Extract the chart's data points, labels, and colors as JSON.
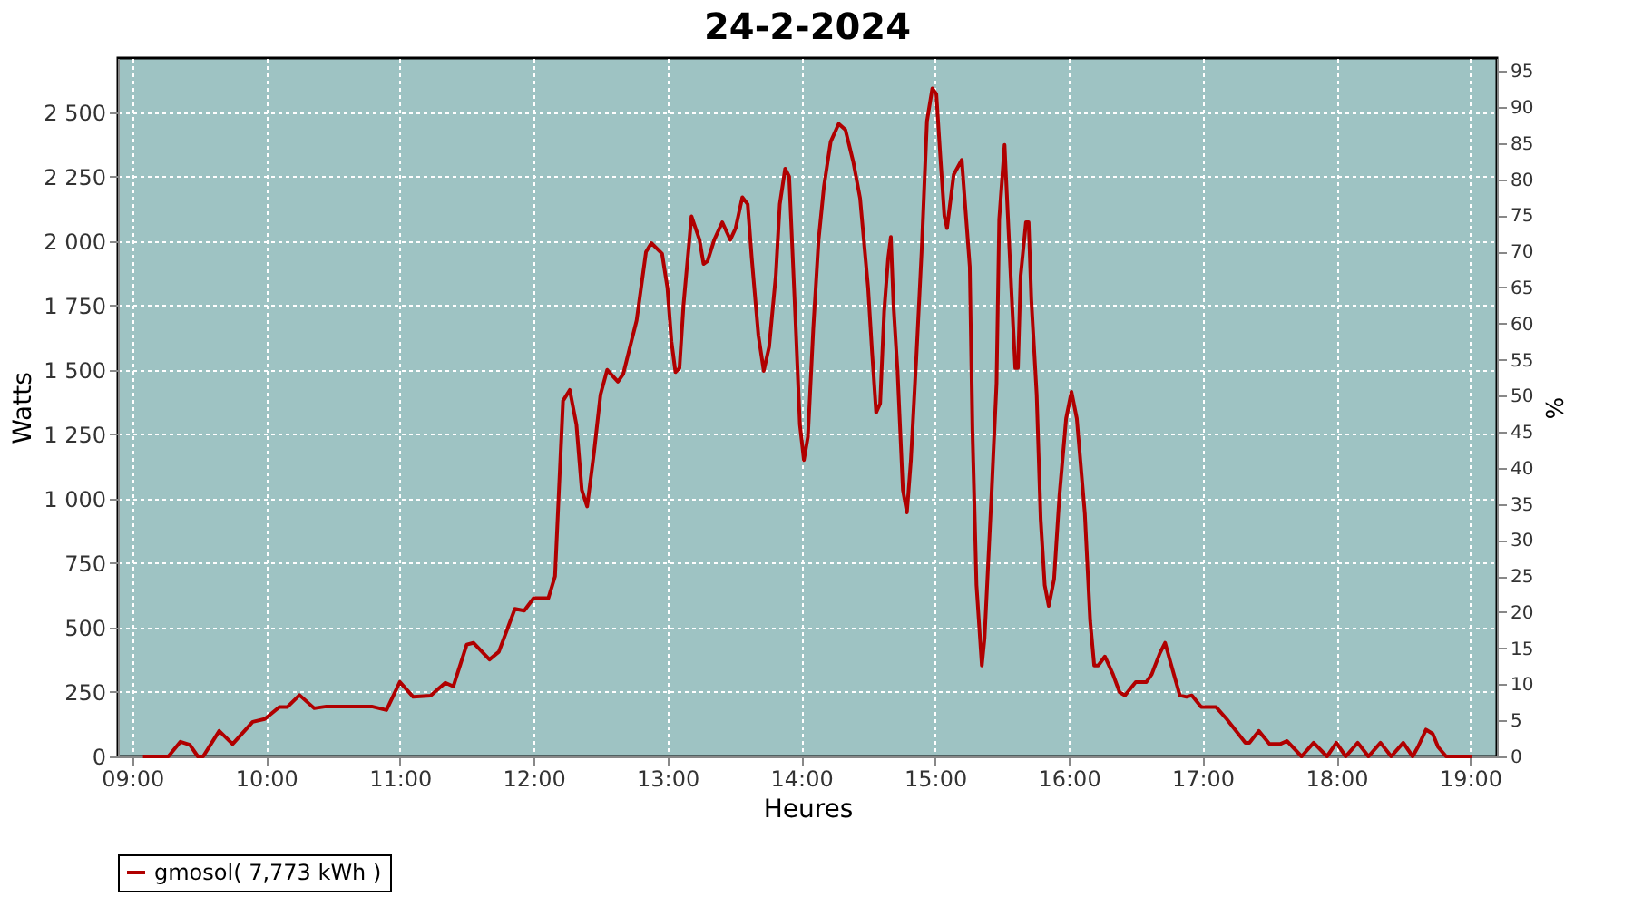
{
  "chart_data": {
    "type": "line",
    "title": "24-2-2024",
    "xlabel": "Heures",
    "ylabel": "Watts",
    "y2label": "%",
    "xlim": [
      8.893,
      19.2
    ],
    "ylim": [
      0,
      2710
    ],
    "y2lim": [
      0,
      96.8
    ],
    "xticks": [
      {
        "value": 9,
        "label": "09:00"
      },
      {
        "value": 10,
        "label": "10:00"
      },
      {
        "value": 11,
        "label": "11:00"
      },
      {
        "value": 12,
        "label": "12:00"
      },
      {
        "value": 13,
        "label": "13:00"
      },
      {
        "value": 14,
        "label": "14:00"
      },
      {
        "value": 15,
        "label": "15:00"
      },
      {
        "value": 16,
        "label": "16:00"
      },
      {
        "value": 17,
        "label": "17:00"
      },
      {
        "value": 18,
        "label": "18:00"
      },
      {
        "value": 19,
        "label": "19:00"
      }
    ],
    "yticks": [
      0,
      250,
      500,
      750,
      {
        "value": 1000,
        "label": "1 000"
      },
      {
        "value": 1250,
        "label": "1 250"
      },
      {
        "value": 1500,
        "label": "1 500"
      },
      {
        "value": 1750,
        "label": "1 750"
      },
      {
        "value": 2000,
        "label": "2 000"
      },
      {
        "value": 2250,
        "label": "2 250"
      },
      {
        "value": 2500,
        "label": "2 500"
      }
    ],
    "y2ticks": [
      0,
      5,
      10,
      15,
      20,
      25,
      30,
      35,
      40,
      45,
      50,
      55,
      60,
      65,
      70,
      75,
      80,
      85,
      90,
      95
    ],
    "grid": true,
    "legend": "bottom",
    "marker": "none",
    "line_style": "solid",
    "series": [
      {
        "name": "gmosol( 7,773 kWh )",
        "color": "#b00000",
        "x": [
          9.08,
          9.27,
          9.36,
          9.43,
          9.49,
          9.53,
          9.65,
          9.75,
          9.9,
          9.99,
          10.1,
          10.16,
          10.25,
          10.36,
          10.45,
          10.79,
          10.9,
          11.0,
          11.1,
          11.23,
          11.34,
          11.4,
          11.5,
          11.55,
          11.67,
          11.74,
          11.86,
          11.93,
          12.0,
          12.11,
          12.16,
          12.22,
          12.27,
          12.32,
          12.36,
          12.4,
          12.45,
          12.5,
          12.55,
          12.63,
          12.67,
          12.77,
          12.84,
          12.88,
          12.96,
          13.0,
          13.03,
          13.06,
          13.09,
          13.12,
          13.18,
          13.24,
          13.27,
          13.3,
          13.35,
          13.41,
          13.47,
          13.51,
          13.56,
          13.6,
          13.63,
          13.68,
          13.72,
          13.76,
          13.81,
          13.84,
          13.88,
          13.91,
          13.95,
          13.99,
          14.02,
          14.05,
          14.09,
          14.13,
          14.17,
          14.22,
          14.28,
          14.33,
          14.39,
          14.44,
          14.5,
          14.53,
          14.56,
          14.59,
          14.62,
          14.65,
          14.67,
          14.69,
          14.72,
          14.76,
          14.79,
          14.82,
          14.86,
          14.9,
          14.94,
          14.98,
          15.01,
          15.04,
          15.07,
          15.09,
          15.14,
          15.2,
          15.26,
          15.28,
          15.31,
          15.35,
          15.37,
          15.42,
          15.46,
          15.48,
          15.52,
          15.53,
          15.57,
          15.6,
          15.62,
          15.64,
          15.68,
          15.7,
          15.72,
          15.76,
          15.79,
          15.82,
          15.85,
          15.89,
          15.93,
          15.98,
          16.02,
          16.06,
          16.12,
          16.16,
          16.19,
          16.22,
          16.27,
          16.33,
          16.38,
          16.42,
          16.5,
          16.58,
          16.62,
          16.68,
          16.72,
          16.76,
          16.83,
          16.88,
          16.92,
          16.99,
          17.1,
          17.18,
          17.32,
          17.35,
          17.42,
          17.5,
          17.58,
          17.63,
          17.74,
          17.83,
          17.93,
          18.0,
          18.07,
          18.16,
          18.24,
          18.33,
          18.41,
          18.5,
          18.57,
          18.61,
          18.67,
          18.72,
          18.76,
          18.82,
          19.01
        ],
        "values": [
          0,
          0,
          57,
          45,
          0,
          0,
          99,
          48,
          134,
          145,
          192,
          192,
          238,
          187,
          194,
          194,
          180,
          289,
          231,
          236,
          286,
          272,
          434,
          441,
          376,
          406,
          573,
          566,
          614,
          614,
          699,
          1380,
          1422,
          1288,
          1034,
          970,
          1173,
          1404,
          1500,
          1454,
          1484,
          1692,
          1958,
          1992,
          1951,
          1819,
          1611,
          1491,
          1507,
          1750,
          2096,
          2005,
          1911,
          1922,
          2005,
          2073,
          2005,
          2050,
          2170,
          2143,
          1935,
          1634,
          1496,
          1589,
          1865,
          2143,
          2281,
          2250,
          1780,
          1288,
          1150,
          1240,
          1658,
          2005,
          2212,
          2385,
          2455,
          2432,
          2305,
          2166,
          1819,
          1566,
          1334,
          1369,
          1727,
          1934,
          2016,
          1750,
          1496,
          1034,
          947,
          1150,
          1542,
          1958,
          2465,
          2592,
          2570,
          2328,
          2097,
          2050,
          2258,
          2315,
          1900,
          1265,
          665,
          353,
          457,
          988,
          1449,
          2084,
          2373,
          2258,
          1819,
          1507,
          1507,
          1865,
          2073,
          2073,
          1773,
          1404,
          919,
          665,
          584,
          688,
          1011,
          1311,
          1415,
          1311,
          942,
          526,
          353,
          353,
          388,
          319,
          249,
          237,
          289,
          289,
          319,
          400,
          441,
          365,
          237,
          231,
          237,
          192,
          192,
          145,
          53,
          53,
          99,
          48,
          48,
          60,
          0,
          53,
          0,
          53,
          0,
          53,
          0,
          53,
          0,
          53,
          0,
          37,
          104,
          88,
          37,
          0,
          0
        ]
      }
    ]
  }
}
